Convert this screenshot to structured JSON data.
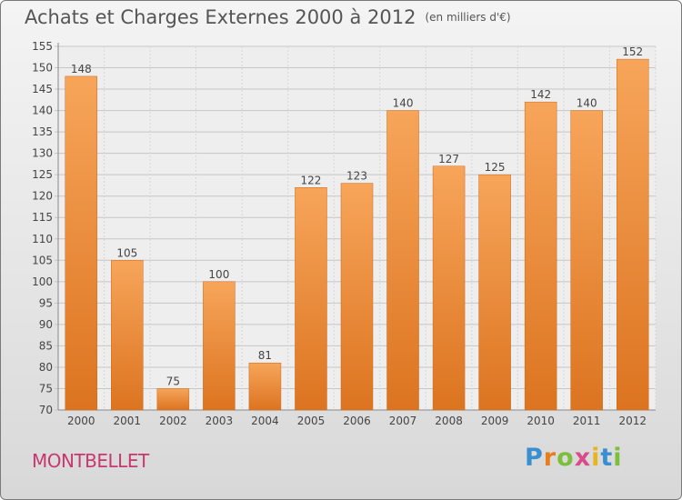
{
  "title": "Achats et Charges Externes 2000 à 2012",
  "unit": "(en milliers d'€)",
  "commune": "MONTBELLET",
  "brand": {
    "letters": [
      "P",
      "r",
      "o",
      "x",
      "i",
      "t",
      "i"
    ],
    "colors": [
      "#3a8fd0",
      "#e87d1e",
      "#7bbf3a",
      "#d84c8a",
      "#e8b51e",
      "#3a8fd0",
      "#7bbf3a"
    ]
  },
  "chart_data": {
    "type": "bar",
    "categories": [
      "2000",
      "2001",
      "2002",
      "2003",
      "2004",
      "2005",
      "2006",
      "2007",
      "2008",
      "2009",
      "2010",
      "2011",
      "2012"
    ],
    "values": [
      148,
      105,
      75,
      100,
      81,
      122,
      123,
      140,
      127,
      125,
      142,
      140,
      152
    ],
    "ylim": [
      70,
      155
    ],
    "yticks": [
      70,
      75,
      80,
      85,
      90,
      95,
      100,
      105,
      110,
      115,
      120,
      125,
      130,
      135,
      140,
      145,
      150,
      155
    ],
    "grid": true,
    "bar_color": "#f0923a"
  }
}
